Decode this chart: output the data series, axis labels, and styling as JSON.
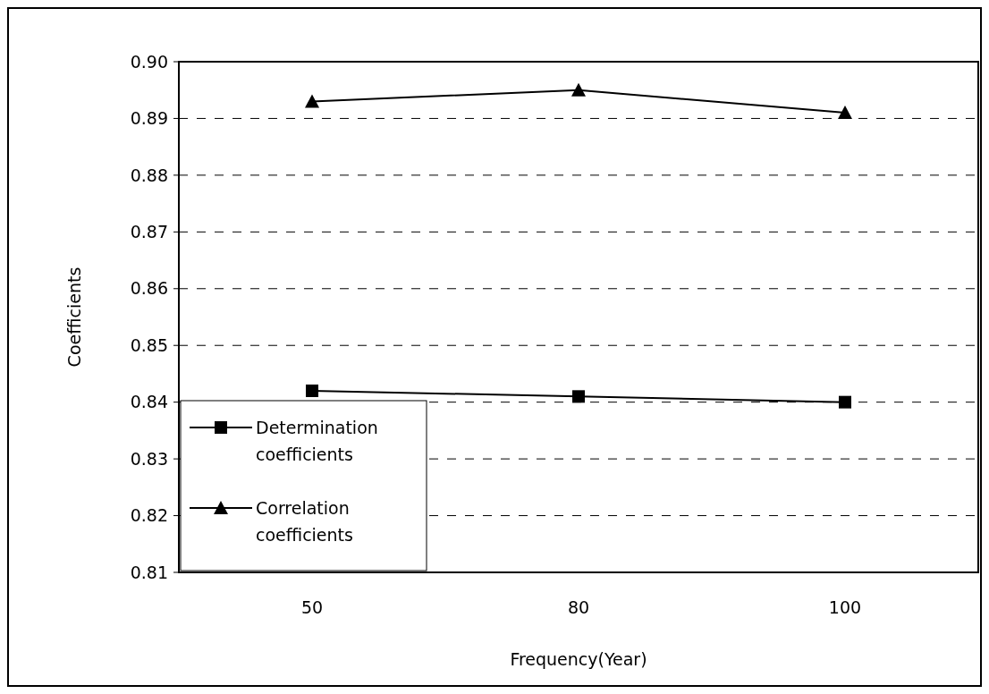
{
  "chart_data": {
    "type": "line",
    "xlabel": "Frequency(Year)",
    "ylabel": "Coefficients",
    "categories": [
      "50",
      "80",
      "100"
    ],
    "series": [
      {
        "name": "Determination coefficients",
        "color": "#000000",
        "marker": "square",
        "values": [
          0.842,
          0.841,
          0.84
        ]
      },
      {
        "name": "Correlation coefficients",
        "color": "#000000",
        "marker": "triangle",
        "values": [
          0.893,
          0.895,
          0.891
        ]
      }
    ],
    "ylim": [
      0.81,
      0.9
    ],
    "yticks": [
      {
        "value": 0.81,
        "label": "0.81"
      },
      {
        "value": 0.82,
        "label": "0.82"
      },
      {
        "value": 0.83,
        "label": "0.83"
      },
      {
        "value": 0.84,
        "label": "0.84"
      },
      {
        "value": 0.85,
        "label": "0.85"
      },
      {
        "value": 0.86,
        "label": "0.86"
      },
      {
        "value": 0.87,
        "label": "0.87"
      },
      {
        "value": 0.88,
        "label": "0.88"
      },
      {
        "value": 0.89,
        "label": "0.89"
      },
      {
        "value": 0.9,
        "label": "0.90"
      }
    ],
    "grid": "y",
    "legend": "bottom left",
    "line_style": "solid"
  }
}
